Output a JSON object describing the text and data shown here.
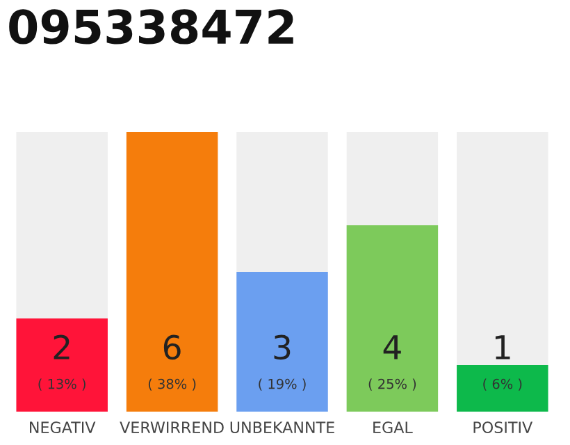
{
  "chart_data": {
    "type": "bar",
    "title": "095338472",
    "categories": [
      "NEGATIV",
      "VERWIRREND",
      "UNBEKANNTE",
      "EGAL",
      "POSITIV"
    ],
    "values": [
      2,
      6,
      3,
      4,
      1
    ],
    "colors": [
      "#ff1439",
      "#f57d0c",
      "#6b9ff0",
      "#7dca5b",
      "#0db94b"
    ],
    "value_labels": [
      "2\n( 13% )",
      "6\n( 38% )",
      "3\n( 19% )",
      "4\n( 25% )",
      "1\n( 6% )"
    ],
    "ylim": [
      0,
      6
    ],
    "grid": false,
    "legend": false
  }
}
